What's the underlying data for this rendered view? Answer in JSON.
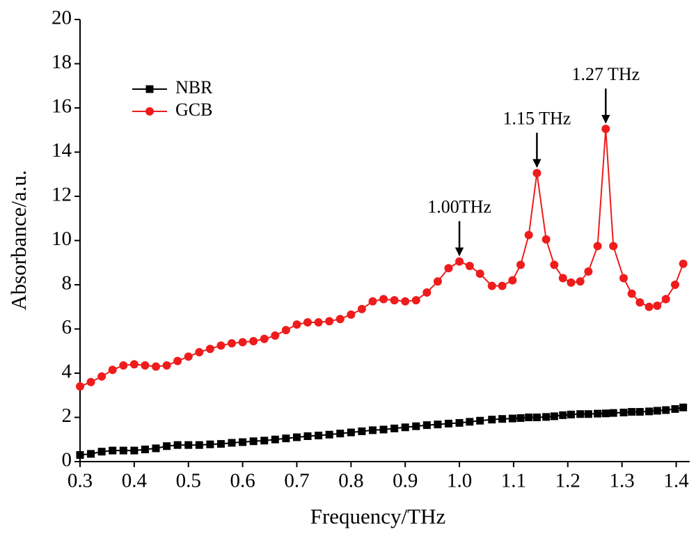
{
  "chart_data": {
    "type": "line",
    "x_label": "Frequency/THz",
    "y_label": "Absorbance/a.u.",
    "x": [
      0.3,
      0.32,
      0.34,
      0.36,
      0.38,
      0.4,
      0.42,
      0.44,
      0.46,
      0.48,
      0.5,
      0.52,
      0.54,
      0.56,
      0.58,
      0.6,
      0.62,
      0.64,
      0.66,
      0.68,
      0.7,
      0.72,
      0.74,
      0.76,
      0.78,
      0.8,
      0.82,
      0.84,
      0.86,
      0.88,
      0.9,
      0.92,
      0.94,
      0.96,
      0.98,
      1.0,
      1.019,
      1.038,
      1.06,
      1.079,
      1.098,
      1.113,
      1.128,
      1.143,
      1.16,
      1.175,
      1.191,
      1.206,
      1.223,
      1.238,
      1.255,
      1.27,
      1.284,
      1.303,
      1.318,
      1.333,
      1.35,
      1.365,
      1.381,
      1.398,
      1.413
    ],
    "series": [
      {
        "name": "NBR",
        "color": "#000000",
        "marker": "square",
        "values": [
          0.3,
          0.35,
          0.45,
          0.5,
          0.5,
          0.5,
          0.55,
          0.6,
          0.7,
          0.75,
          0.75,
          0.75,
          0.78,
          0.8,
          0.85,
          0.88,
          0.92,
          0.95,
          1.0,
          1.05,
          1.1,
          1.15,
          1.18,
          1.22,
          1.27,
          1.32,
          1.37,
          1.42,
          1.45,
          1.5,
          1.55,
          1.6,
          1.65,
          1.68,
          1.72,
          1.75,
          1.8,
          1.85,
          1.9,
          1.93,
          1.95,
          1.97,
          2.0,
          2.0,
          2.02,
          2.05,
          2.1,
          2.13,
          2.15,
          2.15,
          2.17,
          2.18,
          2.2,
          2.22,
          2.25,
          2.25,
          2.27,
          2.3,
          2.33,
          2.38,
          2.45
        ]
      },
      {
        "name": "GCB",
        "color": "#ee1c1c",
        "marker": "circle",
        "values": [
          3.4,
          3.6,
          3.85,
          4.15,
          4.35,
          4.4,
          4.35,
          4.3,
          4.35,
          4.55,
          4.75,
          4.95,
          5.1,
          5.25,
          5.35,
          5.4,
          5.45,
          5.55,
          5.7,
          5.95,
          6.2,
          6.3,
          6.3,
          6.35,
          6.45,
          6.65,
          6.9,
          7.25,
          7.35,
          7.3,
          7.25,
          7.3,
          7.65,
          8.15,
          8.75,
          9.05,
          8.85,
          8.5,
          7.95,
          7.95,
          8.2,
          8.9,
          10.25,
          13.05,
          10.05,
          8.9,
          8.3,
          8.1,
          8.15,
          8.6,
          9.75,
          15.05,
          9.75,
          8.3,
          7.6,
          7.2,
          7.0,
          7.05,
          7.35,
          8.0,
          8.95
        ]
      }
    ],
    "annotations": [
      {
        "text": "1.00THz",
        "x": 1.0,
        "y": 9.05
      },
      {
        "text": "1.15 THz",
        "x": 1.143,
        "y": 13.05
      },
      {
        "text": "1.27 THz",
        "x": 1.27,
        "y": 15.05
      }
    ],
    "xlim": [
      0.3,
      1.425
    ],
    "ylim": [
      0,
      20
    ],
    "xticks": [
      0.3,
      0.4,
      0.5,
      0.6,
      0.7,
      0.8,
      0.9,
      {
        "value": 1,
        "label": "1.0"
      },
      1.1,
      1.2,
      1.3,
      1.4
    ],
    "yticks": [
      0,
      2,
      4,
      6,
      8,
      10,
      12,
      14,
      16,
      18,
      20
    ],
    "legend": "upper-left"
  }
}
